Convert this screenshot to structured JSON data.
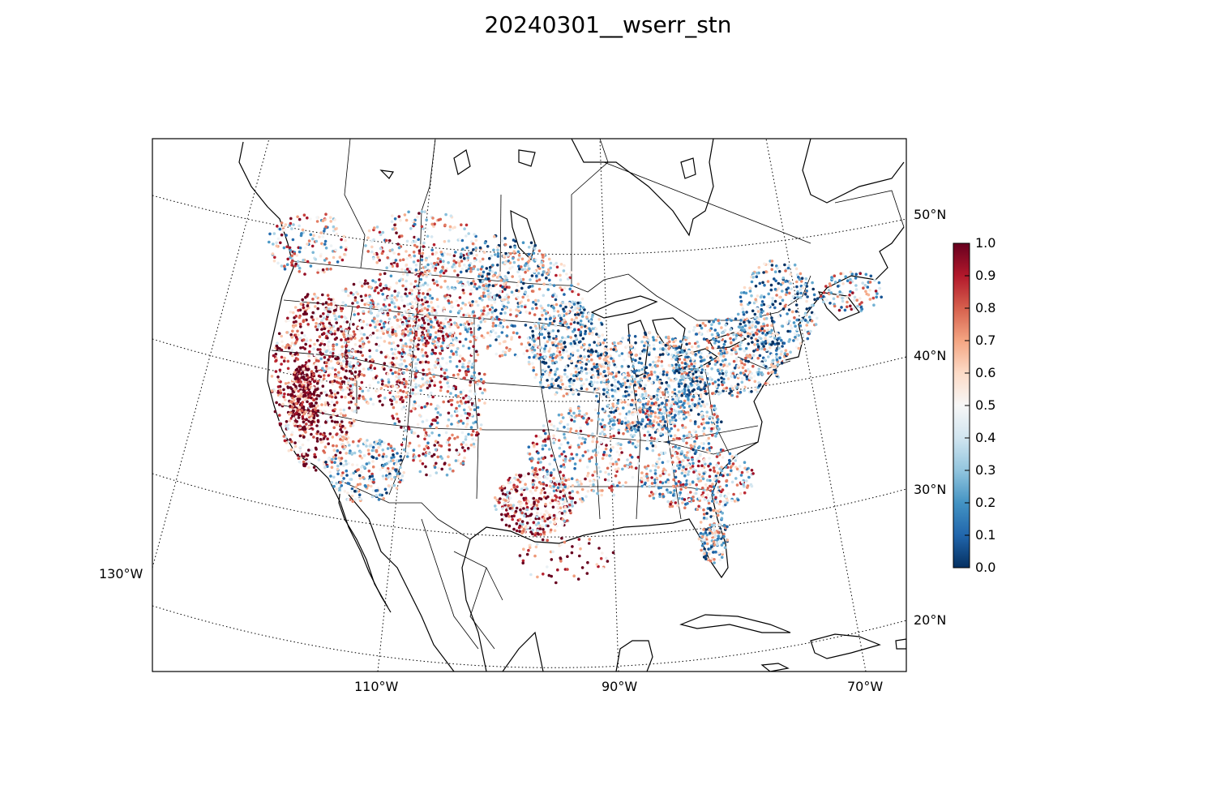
{
  "title": "20240301__wserr_stn",
  "map": {
    "projection": "lambert-conformal",
    "lat_labels": [
      "50°N",
      "40°N",
      "30°N",
      "20°N"
    ],
    "lon_labels": [
      "130°W",
      "110°W",
      "90°W",
      "70°W"
    ],
    "grid_style": "dotted"
  },
  "colorbar": {
    "cmap": "RdBu_r",
    "range": [
      0.0,
      1.0
    ],
    "ticks": [
      "1.0",
      "0.9",
      "0.8",
      "0.7",
      "0.6",
      "0.5",
      "0.4",
      "0.3",
      "0.2",
      "0.1",
      "0.0"
    ],
    "colors": {
      "low": "#053061",
      "mid": "#f7f7f7",
      "high": "#67001f"
    }
  }
}
